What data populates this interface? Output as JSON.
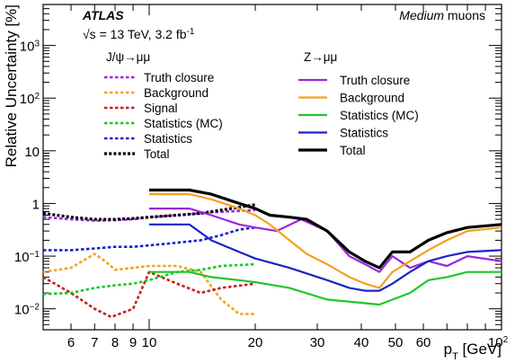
{
  "chart_data": {
    "type": "line",
    "xlabel": "p_T [GeV]",
    "ylabel": "Relative Uncertainty [%]",
    "xscale": "log",
    "yscale": "log",
    "xlim": [
      5,
      100
    ],
    "ylim": [
      0.004,
      6000
    ],
    "x_tick_labels": [
      "6",
      "7",
      "8",
      "9",
      "10",
      "20",
      "30",
      "40",
      "50",
      "60"
    ],
    "x_tick_label_100": {
      "base": "10",
      "exp": "2"
    },
    "y_tick_labels": [
      {
        "base": "10",
        "exp": "−2"
      },
      {
        "base": "10",
        "exp": "−1"
      },
      {
        "base": "1",
        "exp": ""
      },
      {
        "base": "10",
        "exp": ""
      },
      {
        "base": "10",
        "exp": "2"
      },
      {
        "base": "10",
        "exp": "3"
      }
    ],
    "annotations": {
      "experiment": "ATLAS",
      "energy": "√s = 13 TeV, 3.2 fb",
      "energy_sup": "-1",
      "selection_em": "Medium",
      "selection_rest": " muons"
    },
    "jpsi_legend_title": "J/ψ→μμ",
    "z_legend_title": "Z→μμ",
    "series": [
      {
        "name": "Truth closure",
        "group": "jpsi",
        "color": "#9b27e0",
        "dash": "dotted",
        "x": [
          5,
          6,
          7,
          8,
          9,
          10,
          12,
          15,
          20
        ],
        "y": [
          0.55,
          0.5,
          0.47,
          0.48,
          0.5,
          0.55,
          0.6,
          0.68,
          0.75
        ]
      },
      {
        "name": "Background",
        "group": "jpsi",
        "color": "#f5a11c",
        "dash": "dotted",
        "x": [
          5,
          6,
          7,
          7.5,
          8,
          9,
          10,
          12,
          14,
          16,
          18,
          20
        ],
        "y": [
          0.05,
          0.06,
          0.11,
          0.08,
          0.055,
          0.06,
          0.065,
          0.065,
          0.05,
          0.015,
          0.008,
          0.008
        ]
      },
      {
        "name": "Signal",
        "group": "jpsi",
        "color": "#c8201c",
        "dash": "dotted",
        "x": [
          5,
          6,
          7,
          7.8,
          9,
          10,
          12,
          14,
          16,
          20
        ],
        "y": [
          0.04,
          0.02,
          0.01,
          0.007,
          0.01,
          0.05,
          0.03,
          0.02,
          0.025,
          0.03
        ]
      },
      {
        "name": "Statistics (MC)",
        "group": "jpsi",
        "color": "#1fc72a",
        "dash": "dotted",
        "x": [
          5,
          6,
          7,
          8,
          9,
          10,
          12,
          14,
          16,
          20
        ],
        "y": [
          0.019,
          0.02,
          0.025,
          0.028,
          0.03,
          0.035,
          0.05,
          0.055,
          0.065,
          0.07
        ]
      },
      {
        "name": "Statistics",
        "group": "jpsi",
        "color": "#1a24c8",
        "dash": "dotted",
        "x": [
          5,
          6,
          7,
          8,
          9,
          10,
          12,
          14,
          16,
          18,
          20
        ],
        "y": [
          0.13,
          0.13,
          0.14,
          0.15,
          0.15,
          0.16,
          0.18,
          0.2,
          0.25,
          0.32,
          0.35
        ]
      },
      {
        "name": "Total",
        "group": "jpsi",
        "color": "#000000",
        "dash": "dotted",
        "x": [
          5,
          6,
          7,
          8,
          9,
          10,
          12,
          14,
          16,
          18,
          20
        ],
        "y": [
          0.65,
          0.55,
          0.5,
          0.5,
          0.52,
          0.55,
          0.6,
          0.65,
          0.75,
          0.85,
          0.95
        ]
      },
      {
        "name": "Truth closure",
        "group": "z",
        "color": "#9b27e0",
        "dash": "solid",
        "x": [
          10,
          13,
          15,
          18,
          20,
          23,
          27,
          32,
          37,
          41,
          45,
          49,
          55,
          62,
          70,
          80,
          100
        ],
        "y": [
          0.8,
          0.8,
          0.6,
          0.4,
          0.35,
          0.3,
          0.5,
          0.3,
          0.1,
          0.07,
          0.05,
          0.1,
          0.06,
          0.08,
          0.065,
          0.1,
          0.08
        ]
      },
      {
        "name": "Background",
        "group": "z",
        "color": "#f5a11c",
        "dash": "solid",
        "x": [
          10,
          13,
          15,
          18,
          20,
          22,
          25,
          28,
          32,
          37,
          41,
          45,
          49,
          55,
          62,
          70,
          80,
          100
        ],
        "y": [
          1.5,
          1.5,
          1.2,
          0.8,
          0.6,
          0.4,
          0.2,
          0.11,
          0.07,
          0.04,
          0.03,
          0.025,
          0.05,
          0.08,
          0.13,
          0.2,
          0.3,
          0.35
        ]
      },
      {
        "name": "Statistics (MC)",
        "group": "z",
        "color": "#1fc72a",
        "dash": "solid",
        "x": [
          10,
          13,
          15,
          18,
          20,
          25,
          32,
          40,
          45,
          55,
          62,
          70,
          80,
          100
        ],
        "y": [
          0.05,
          0.05,
          0.04,
          0.035,
          0.032,
          0.025,
          0.015,
          0.013,
          0.012,
          0.02,
          0.035,
          0.04,
          0.05,
          0.05
        ]
      },
      {
        "name": "Statistics",
        "group": "z",
        "color": "#1a24c8",
        "dash": "solid",
        "x": [
          10,
          13,
          15,
          18,
          20,
          25,
          32,
          37,
          41,
          45,
          49,
          55,
          62,
          70,
          80,
          100
        ],
        "y": [
          0.4,
          0.4,
          0.2,
          0.12,
          0.09,
          0.06,
          0.035,
          0.025,
          0.022,
          0.022,
          0.03,
          0.05,
          0.08,
          0.1,
          0.12,
          0.13
        ]
      },
      {
        "name": "Total",
        "group": "z",
        "color": "#000000",
        "dash": "solid",
        "x": [
          10,
          13,
          15,
          18,
          20,
          22,
          25,
          28,
          32,
          37,
          41,
          45,
          49,
          55,
          62,
          70,
          80,
          100
        ],
        "y": [
          1.8,
          1.8,
          1.5,
          1.0,
          0.8,
          0.6,
          0.55,
          0.5,
          0.3,
          0.12,
          0.08,
          0.06,
          0.12,
          0.12,
          0.2,
          0.28,
          0.35,
          0.4
        ]
      }
    ]
  }
}
